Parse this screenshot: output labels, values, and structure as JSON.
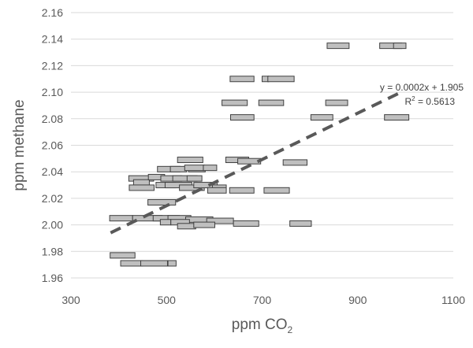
{
  "chart_data": {
    "type": "scatter",
    "title": "",
    "xlabel": "ppm CO",
    "xlabel_subscript": "2",
    "ylabel": "ppm methane",
    "xlim": [
      300,
      1100
    ],
    "ylim": [
      1.96,
      2.16
    ],
    "x_ticks": [
      "300",
      "500",
      "700",
      "900",
      "1100"
    ],
    "y_ticks": [
      "1.96",
      "1.98",
      "2.00",
      "2.02",
      "2.04",
      "2.06",
      "2.08",
      "2.10",
      "2.12",
      "2.14",
      "2.16"
    ],
    "grid": "horizontal",
    "marker": "horizontal-bar",
    "marker_color": "#bfbfbf",
    "marker_edge_color": "#404040",
    "trendline_color": "#595959",
    "trendline": {
      "type": "linear",
      "x_range": [
        383,
        985
      ],
      "y_range": [
        1.994,
        2.099
      ],
      "style": "dashed"
    },
    "annotations": {
      "equation": "y = 0.0002x + 1.905",
      "r_squared_prefix": "R",
      "r_squared_exponent": "2",
      "r_squared_suffix": " = 0.5613"
    },
    "series": [
      {
        "x_ranges": [
          [
            836,
            882
          ],
          [
            946,
            992
          ],
          [
            975,
            1001
          ],
          [
            633,
            683
          ],
          [
            700,
            714
          ],
          [
            712,
            767
          ],
          [
            616,
            669
          ],
          [
            693,
            745
          ],
          [
            833,
            879
          ],
          [
            634,
            683
          ],
          [
            802,
            848
          ],
          [
            956,
            1007
          ],
          [
            744,
            794
          ],
          [
            624,
            672
          ],
          [
            649,
            697
          ],
          [
            523,
            576
          ],
          [
            481,
            528
          ],
          [
            508,
            542
          ],
          [
            546,
            581
          ],
          [
            538,
            579
          ],
          [
            577,
            605
          ],
          [
            421,
            473
          ],
          [
            431,
            464
          ],
          [
            462,
            496
          ],
          [
            488,
            532
          ],
          [
            513,
            564
          ],
          [
            543,
            574
          ],
          [
            422,
            474
          ],
          [
            478,
            519
          ],
          [
            497,
            553
          ],
          [
            527,
            579
          ],
          [
            557,
            606
          ],
          [
            596,
            625
          ],
          [
            586,
            625
          ],
          [
            632,
            683
          ],
          [
            704,
            757
          ],
          [
            461,
            519
          ],
          [
            381,
            429
          ],
          [
            429,
            491
          ],
          [
            472,
            527
          ],
          [
            503,
            551
          ],
          [
            540,
            597
          ],
          [
            584,
            640
          ],
          [
            487,
            509
          ],
          [
            509,
            548
          ],
          [
            523,
            561
          ],
          [
            557,
            601
          ],
          [
            640,
            693
          ],
          [
            758,
            803
          ],
          [
            382,
            434
          ],
          [
            404,
            450
          ],
          [
            446,
            502
          ],
          [
            503,
            520
          ]
        ],
        "y": [
          2.135,
          2.135,
          2.135,
          2.11,
          2.11,
          2.11,
          2.092,
          2.092,
          2.092,
          2.081,
          2.081,
          2.081,
          2.047,
          2.049,
          2.048,
          2.049,
          2.042,
          2.042,
          2.042,
          2.043,
          2.043,
          2.035,
          2.032,
          2.036,
          2.035,
          2.035,
          2.035,
          2.028,
          2.03,
          2.03,
          2.028,
          2.03,
          2.028,
          2.026,
          2.026,
          2.026,
          2.017,
          2.005,
          2.005,
          2.005,
          2.005,
          2.004,
          2.003,
          2.002,
          2.002,
          1.999,
          2.0,
          2.001,
          2.001,
          1.977,
          1.971,
          1.971,
          1.971
        ]
      }
    ]
  }
}
